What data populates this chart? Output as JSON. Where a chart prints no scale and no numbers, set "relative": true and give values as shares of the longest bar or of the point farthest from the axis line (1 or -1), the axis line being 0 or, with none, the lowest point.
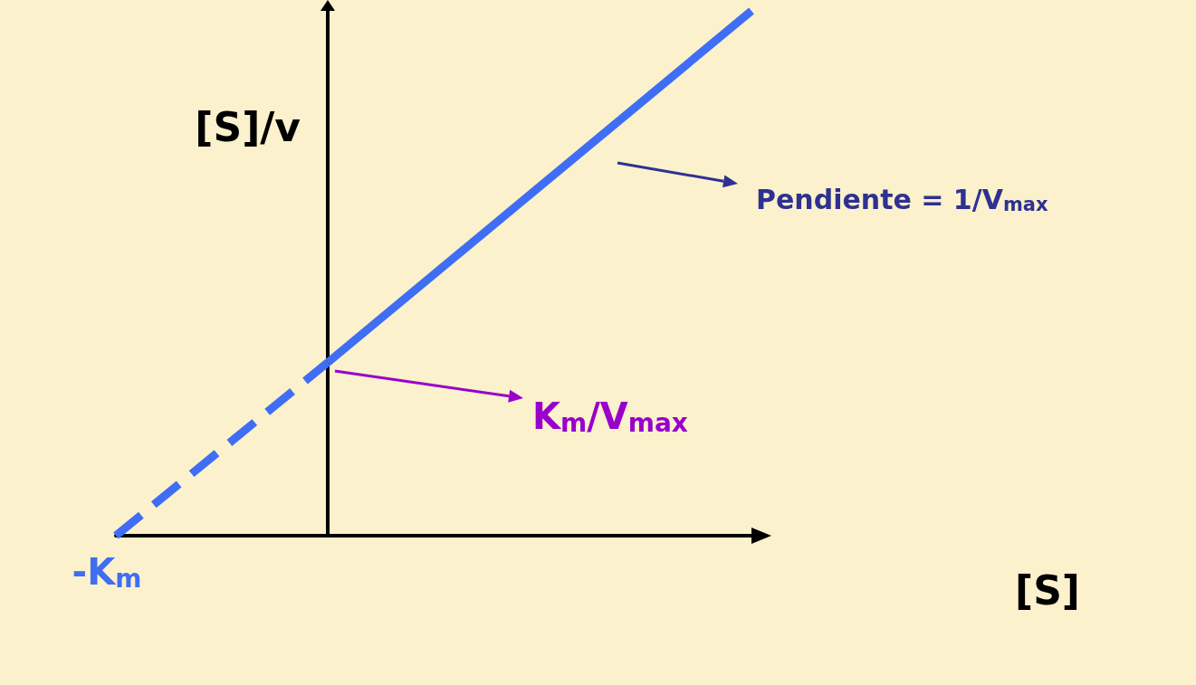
{
  "chart_data": {
    "type": "line",
    "relative": true,
    "ylabel": "[S]/v",
    "categories": [
      null,
      null,
      null,
      null
    ],
    "series": [
      {
        "color": "#3f6ef5",
        "line_style": "dashed",
        "values": [
          0,
          0.33,
          null,
          null
        ]
      },
      {
        "color": "#3f6ef5",
        "line_style": "solid",
        "values": [
          null,
          0.33,
          0.665,
          1
        ]
      }
    ],
    "annotations": [
      "-K$_{m}$",
      "K$_{m}$/V$_{max}$",
      "Pendiente = 1/V$_{max}$",
      "[S]"
    ],
    "marker": "none",
    "grid": false
  }
}
